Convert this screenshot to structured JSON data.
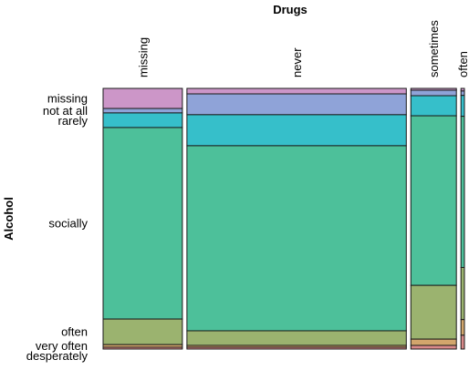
{
  "chart_data": {
    "type": "mosaic",
    "title": "Drugs",
    "y_label": "Alcohol",
    "row_categories": [
      "missing",
      "not at all",
      "rarely",
      "socially",
      "often",
      "very often",
      "desperately"
    ],
    "colors": [
      "#cc96c8",
      "#8fa3d8",
      "#36bfca",
      "#4dc09a",
      "#9bb36f",
      "#d2a66c",
      "#d98a8a"
    ],
    "columns": [
      {
        "name": "missing",
        "width": 22.8,
        "values": [
          7.7,
          1.7,
          5.6,
          73.4,
          9.8,
          1.0,
          0.7
        ]
      },
      {
        "name": "never",
        "width": 63.1,
        "values": [
          2.1,
          8.0,
          11.9,
          71.0,
          5.6,
          0.7,
          0.7
        ]
      },
      {
        "name": "sometimes",
        "width": 13.1,
        "values": [
          0.7,
          2.1,
          7.7,
          65.0,
          20.6,
          2.4,
          1.4
        ]
      },
      {
        "name": "often",
        "width": 1.0,
        "values": [
          1.0,
          1.7,
          8.0,
          58.0,
          20.0,
          6.0,
          5.3
        ]
      }
    ]
  }
}
